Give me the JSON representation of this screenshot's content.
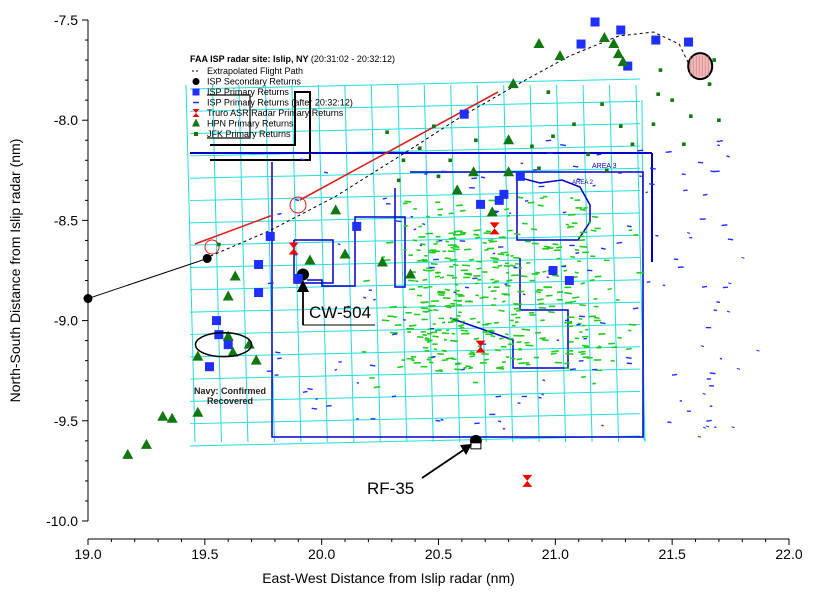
{
  "chart_data": {
    "type": "scatter",
    "title": "FAA ISP radar site: Islip, NY",
    "time_range": "(20:31:02 - 20:32:12)",
    "xlabel": "East-West Distance from Islip radar (nm)",
    "ylabel": "North-South Distance from Islip radar (nm)",
    "xlim": [
      19.0,
      22.0
    ],
    "ylim": [
      -10.0,
      -7.5
    ],
    "xticks": [
      "19.0",
      "19.5",
      "20.0",
      "20.5",
      "21.0",
      "21.5",
      "22.0"
    ],
    "yticks": [
      "-7.5",
      "-8.0",
      "-8.5",
      "-9.0",
      "-9.5",
      "-10.0"
    ],
    "grid": false,
    "legend_position": "top-left",
    "legend": [
      {
        "label": "Extrapolated Flight Path",
        "symbol": "dashed-line",
        "color": "#000000"
      },
      {
        "label": "ISP Secondary Returns",
        "symbol": "filled-pentagon",
        "color": "#000000"
      },
      {
        "label": "ISP Primary Returns",
        "symbol": "filled-square",
        "color": "#1f2fff"
      },
      {
        "label": "ISP Primary Returns (after 20:32:12)",
        "symbol": "small-tick",
        "color": "#1f2fff"
      },
      {
        "label": "Truro ASR Radar Primary Returns",
        "symbol": "hourglass",
        "color": "#ee0000"
      },
      {
        "label": "HPN Primary Returns",
        "symbol": "filled-triangle",
        "color": "#117711"
      },
      {
        "label": "JFK Primary Returns",
        "symbol": "small-square",
        "color": "#117711"
      }
    ],
    "annotations": [
      {
        "text": "CW-504",
        "x": 19.92,
        "y": -8.77
      },
      {
        "text": "RF-35",
        "x": 20.66,
        "y": -9.6
      },
      {
        "text": "Navy: Confirmed",
        "x": 19.55,
        "y": -9.35
      },
      {
        "text": "Recovered",
        "x": 19.55,
        "y": -9.4
      }
    ],
    "series": [
      {
        "name": "Extrapolated Flight Path",
        "type": "line",
        "points": [
          [
            19.5,
            -8.69
          ],
          [
            19.78,
            -8.55
          ],
          [
            20.06,
            -8.38
          ],
          [
            20.36,
            -8.16
          ],
          [
            20.6,
            -7.98
          ],
          [
            20.84,
            -7.82
          ],
          [
            21.06,
            -7.68
          ],
          [
            21.27,
            -7.58
          ],
          [
            21.42,
            -7.56
          ],
          [
            21.53,
            -7.62
          ],
          [
            21.58,
            -7.74
          ]
        ]
      },
      {
        "name": "ISP Secondary Returns",
        "type": "scatter",
        "points": [
          [
            19.0,
            -8.89
          ],
          [
            19.51,
            -8.69
          ],
          [
            19.92,
            -8.77
          ],
          [
            20.66,
            -9.6
          ]
        ]
      },
      {
        "name": "ISP Primary Returns",
        "type": "scatter",
        "points": [
          [
            19.73,
            -8.86
          ],
          [
            19.73,
            -8.72
          ],
          [
            19.6,
            -9.12
          ],
          [
            19.56,
            -9.07
          ],
          [
            19.55,
            -9.0
          ],
          [
            19.52,
            -9.23
          ],
          [
            19.9,
            -8.79
          ],
          [
            20.15,
            -8.53
          ],
          [
            20.61,
            -7.97
          ],
          [
            20.68,
            -8.42
          ],
          [
            20.76,
            -8.4
          ],
          [
            20.78,
            -8.37
          ],
          [
            20.99,
            -8.75
          ],
          [
            21.06,
            -8.8
          ],
          [
            20.85,
            -8.28
          ],
          [
            21.11,
            -7.62
          ],
          [
            21.17,
            -7.51
          ],
          [
            21.28,
            -7.55
          ],
          [
            21.31,
            -7.73
          ],
          [
            21.43,
            -7.6
          ],
          [
            21.57,
            -7.61
          ],
          [
            19.78,
            -8.58
          ]
        ]
      },
      {
        "name": "Truro ASR Radar Primary Returns",
        "type": "scatter",
        "points": [
          [
            19.88,
            -8.64
          ],
          [
            20.74,
            -8.54
          ],
          [
            20.68,
            -9.13
          ],
          [
            20.88,
            -9.8
          ]
        ]
      },
      {
        "name": "HPN Primary Returns",
        "type": "scatter",
        "points": [
          [
            19.17,
            -9.67
          ],
          [
            19.25,
            -9.62
          ],
          [
            19.32,
            -9.48
          ],
          [
            19.36,
            -9.49
          ],
          [
            19.47,
            -9.46
          ],
          [
            19.47,
            -9.18
          ],
          [
            19.6,
            -9.08
          ],
          [
            19.62,
            -9.16
          ],
          [
            19.69,
            -9.12
          ],
          [
            19.72,
            -9.2
          ],
          [
            19.63,
            -8.78
          ],
          [
            19.6,
            -8.88
          ],
          [
            19.95,
            -8.7
          ],
          [
            20.06,
            -8.45
          ],
          [
            20.1,
            -8.67
          ],
          [
            20.26,
            -8.71
          ],
          [
            20.38,
            -8.77
          ],
          [
            20.58,
            -8.35
          ],
          [
            20.65,
            -8.26
          ],
          [
            20.73,
            -8.46
          ],
          [
            20.8,
            -8.26
          ],
          [
            20.8,
            -8.1
          ],
          [
            21.21,
            -7.59
          ],
          [
            21.27,
            -7.67
          ],
          [
            21.29,
            -7.71
          ],
          [
            21.25,
            -7.62
          ],
          [
            21.02,
            -7.68
          ],
          [
            20.93,
            -7.62
          ],
          [
            20.82,
            -7.82
          ]
        ]
      },
      {
        "name": "Navy recovery area",
        "type": "circle",
        "center": [
          19.58,
          -9.12
        ],
        "radius": [
          0.12,
          0.06
        ]
      },
      {
        "name": "Terminal circle",
        "type": "circle",
        "center": [
          21.62,
          -7.73
        ],
        "radius": [
          0.05,
          0.06
        ]
      }
    ],
    "overlays": {
      "chart_map": "Nautical chart grid (cyan), Area 3 and Area 2 boundaries (blue), debris field returns (green)",
      "area_labels": [
        "AREA 3",
        "AREA 2"
      ],
      "colors": {
        "grid": "#22dddd",
        "boundary": "#0000cc",
        "red_line": "#e02020",
        "green_returns": "#22cc22",
        "blue_returns": "#1f2fff",
        "hpn": "#117711",
        "truro": "#ee0000"
      }
    }
  }
}
